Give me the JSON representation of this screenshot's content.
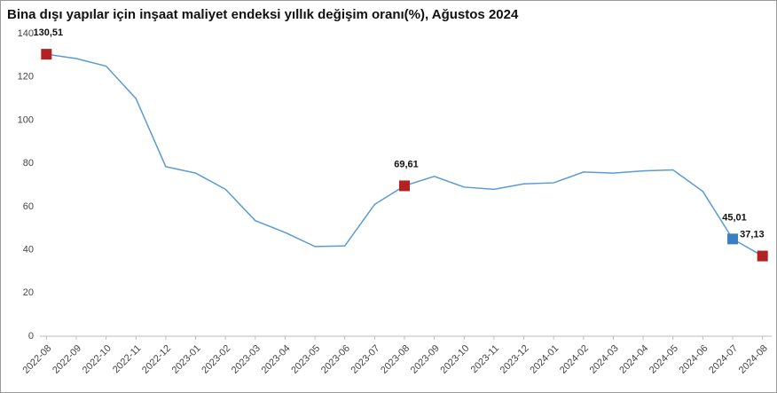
{
  "chart_data": {
    "type": "line",
    "title": "Bina dışı yapılar için inşaat maliyet endeksi yıllık değişim oranı(%), Ağustos 2024",
    "categories": [
      "2022-08",
      "2022-09",
      "2022-10",
      "2022-11",
      "2022-12",
      "2023-01",
      "2023-02",
      "2023-03",
      "2023-04",
      "2023-05",
      "2023-06",
      "2023-07",
      "2023-08",
      "2023-09",
      "2023-10",
      "2023-11",
      "2023-12",
      "2024-01",
      "2024-02",
      "2024-03",
      "2024-04",
      "2024-05",
      "2024-06",
      "2024-07",
      "2024-08"
    ],
    "values": [
      130.51,
      128.5,
      125,
      110,
      78.5,
      75.5,
      68,
      53.5,
      48,
      41.5,
      41.8,
      61,
      69.61,
      74,
      69,
      68,
      70.5,
      71,
      76,
      75.5,
      76.5,
      77,
      67,
      45.01,
      37.13
    ],
    "value_labels": [
      "130,51",
      null,
      null,
      null,
      null,
      null,
      null,
      null,
      null,
      null,
      null,
      null,
      "69,61",
      null,
      null,
      null,
      null,
      null,
      null,
      null,
      null,
      null,
      null,
      "45,01",
      "37,13"
    ],
    "marker_colors": [
      "#b22222",
      null,
      null,
      null,
      null,
      null,
      null,
      null,
      null,
      null,
      null,
      null,
      "#b22222",
      null,
      null,
      null,
      null,
      null,
      null,
      null,
      null,
      null,
      null,
      "#3a7fc1",
      "#b22222"
    ],
    "color": "#5b9bd5",
    "ylim": [
      0,
      140
    ],
    "yticks": [
      0,
      20,
      40,
      60,
      80,
      100,
      120,
      140
    ],
    "grid": false
  }
}
